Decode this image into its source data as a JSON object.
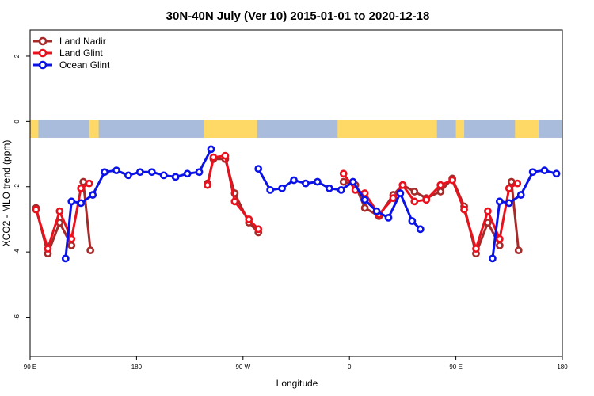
{
  "chart_data": {
    "type": "line",
    "title": "30N-40N July (Ver 10)   2015-01-01 to 2020-12-18",
    "xlabel": "Longitude",
    "ylabel": "XCO2 - MLO trend (ppm)",
    "x_axis": {
      "unit": "degrees longitude (90 E to 90 E via 180 and 0)",
      "range": [
        90,
        450
      ],
      "ticks": [
        {
          "value": 90,
          "label": "90 E"
        },
        {
          "value": 180,
          "label": "180"
        },
        {
          "value": 270,
          "label": "90 W"
        },
        {
          "value": 360,
          "label": "0"
        },
        {
          "value": 450,
          "label": "90 E"
        },
        {
          "value": 540,
          "label": "180"
        }
      ],
      "note": "longitude increases eastward from 90 E; values > 360 wrap past Greenwich"
    },
    "y_axis": {
      "range": [
        -7.2,
        2.8
      ],
      "ticks": [
        {
          "value": 2,
          "label": "2"
        },
        {
          "value": 0,
          "label": "0"
        },
        {
          "value": -2,
          "label": "-2"
        },
        {
          "value": -4,
          "label": "-4"
        },
        {
          "value": -6,
          "label": "-6"
        }
      ]
    },
    "x_range": [
      90,
      540
    ],
    "grid": false,
    "legend_position": "top-left",
    "map_strip": {
      "y_range": [
        -0.5,
        0.05
      ],
      "land_color": "#FFD966",
      "ocean_color": "#A9BCDB",
      "land_segments": [
        [
          90,
          97
        ],
        [
          140,
          148
        ],
        [
          237,
          282
        ],
        [
          350,
          434
        ],
        [
          450,
          457
        ],
        [
          500,
          520
        ]
      ]
    },
    "series": [
      {
        "name": "Land Nadir",
        "color": "#A52A2A",
        "segments": [
          [
            [
              95,
              -2.65
            ],
            [
              105,
              -4.05
            ],
            [
              115,
              -3.1
            ],
            [
              125,
              -3.8
            ]
          ],
          [
            [
              135,
              -1.85
            ],
            [
              141,
              -3.95
            ]
          ],
          [
            [
              240,
              -1.9
            ],
            [
              245,
              -1.15
            ],
            [
              255,
              -1.15
            ],
            [
              263,
              -2.2
            ],
            [
              275,
              -3.1
            ],
            [
              283,
              -3.4
            ]
          ],
          [
            [
              355,
              -1.85
            ],
            [
              365,
              -1.95
            ],
            [
              373,
              -2.65
            ],
            [
              385,
              -2.9
            ],
            [
              397,
              -2.25
            ],
            [
              405,
              -1.95
            ],
            [
              415,
              -2.15
            ],
            [
              425,
              -2.35
            ],
            [
              437,
              -2.15
            ],
            [
              447,
              -1.75
            ],
            [
              457,
              -2.6
            ],
            [
              467,
              -4.05
            ],
            [
              477,
              -3.1
            ],
            [
              487,
              -3.8
            ]
          ],
          [
            [
              497,
              -1.85
            ],
            [
              503,
              -3.95
            ]
          ]
        ]
      },
      {
        "name": "Land Glint",
        "color": "#E8121E",
        "segments": [
          [
            [
              95,
              -2.7
            ],
            [
              105,
              -3.9
            ],
            [
              115,
              -2.75
            ],
            [
              125,
              -3.6
            ],
            [
              133,
              -2.05
            ],
            [
              140,
              -1.9
            ]
          ],
          [
            [
              240,
              -1.95
            ],
            [
              245,
              -1.1
            ],
            [
              255,
              -1.05
            ],
            [
              263,
              -2.45
            ],
            [
              275,
              -3.0
            ],
            [
              283,
              -3.3
            ]
          ],
          [
            [
              355,
              -1.6
            ],
            [
              365,
              -2.1
            ],
            [
              373,
              -2.2
            ],
            [
              385,
              -2.85
            ],
            [
              397,
              -2.35
            ],
            [
              405,
              -1.95
            ],
            [
              415,
              -2.45
            ],
            [
              425,
              -2.4
            ],
            [
              437,
              -1.95
            ],
            [
              447,
              -1.8
            ],
            [
              457,
              -2.7
            ],
            [
              467,
              -3.9
            ],
            [
              477,
              -2.75
            ],
            [
              487,
              -3.6
            ],
            [
              495,
              -2.05
            ],
            [
              502,
              -1.9
            ]
          ]
        ]
      },
      {
        "name": "Ocean Glint",
        "color": "#0A12E6",
        "segments": [
          [
            [
              120,
              -4.2
            ],
            [
              125,
              -2.45
            ],
            [
              133,
              -2.5
            ],
            [
              143,
              -2.25
            ],
            [
              153,
              -1.55
            ],
            [
              163,
              -1.5
            ],
            [
              173,
              -1.65
            ],
            [
              183,
              -1.55
            ],
            [
              193,
              -1.55
            ],
            [
              203,
              -1.65
            ],
            [
              213,
              -1.7
            ],
            [
              223,
              -1.6
            ],
            [
              233,
              -1.55
            ],
            [
              243,
              -0.85
            ]
          ],
          [
            [
              283,
              -1.45
            ],
            [
              293,
              -2.1
            ],
            [
              303,
              -2.05
            ],
            [
              313,
              -1.8
            ],
            [
              323,
              -1.9
            ],
            [
              333,
              -1.85
            ],
            [
              343,
              -2.05
            ],
            [
              353,
              -2.1
            ],
            [
              363,
              -1.85
            ],
            [
              373,
              -2.4
            ],
            [
              383,
              -2.75
            ],
            [
              393,
              -2.95
            ],
            [
              403,
              -2.2
            ],
            [
              413,
              -3.05
            ],
            [
              420,
              -3.3
            ]
          ],
          [
            [
              481,
              -4.2
            ],
            [
              487,
              -2.45
            ],
            [
              495,
              -2.5
            ],
            [
              505,
              -2.25
            ],
            [
              515,
              -1.55
            ],
            [
              525,
              -1.5
            ],
            [
              535,
              -1.6
            ]
          ]
        ]
      }
    ]
  }
}
